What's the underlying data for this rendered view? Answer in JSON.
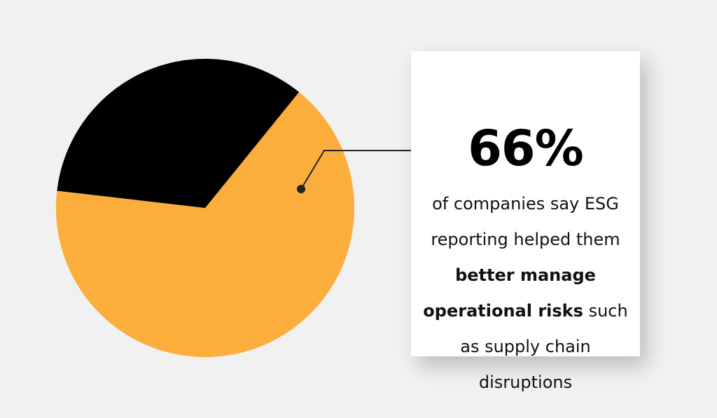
{
  "chart_data": {
    "type": "pie",
    "slices": [
      {
        "label": "",
        "value": 66,
        "color": "#fbae3c"
      },
      {
        "label": "",
        "value": 34,
        "color": "#000000"
      }
    ]
  },
  "callout": {
    "value": "66%",
    "text_part1": "of companies say ESG",
    "text_part2": "reporting helped them",
    "bold_part1": "better manage",
    "bold_part2": "operational risks",
    "text_part3": "such",
    "text_part4": "as supply chain",
    "text_part5": "disruptions"
  },
  "colors": {
    "accent": "#fbae3c",
    "dark": "#000000",
    "background": "#f1f1f1",
    "card": "#ffffff"
  }
}
